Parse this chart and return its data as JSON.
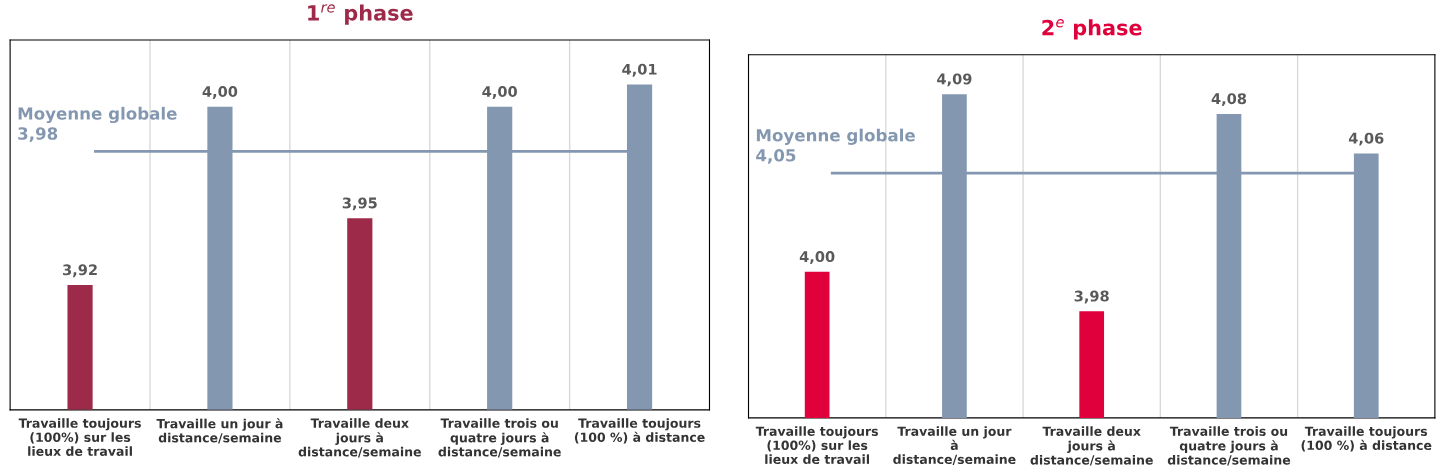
{
  "chart_data": [
    {
      "type": "bar",
      "title": "1$^{re}$ phase",
      "categories": [
        "Travaille toujours\n(100%) sur les\nlieux de travail",
        "Travaille un jour à\ndistance/semaine",
        "Travaille deux\njours à\ndistance/semaine",
        "Travaille trois ou\nquatre jours à\ndistance/semaine",
        "Travaille toujours\n(100 %) à distance"
      ],
      "values": [
        3.92,
        4.0,
        3.95,
        4.0,
        4.01
      ],
      "colors": [
        "#9e2a4a",
        "#8497b0",
        "#9e2a4a",
        "#8497b0",
        "#8497b0"
      ],
      "value_labels": [
        "3,92",
        "4,00",
        "3,95",
        "4,00",
        "4,01"
      ],
      "ylim": [
        3.864,
        4.03
      ],
      "tick_labels": "x",
      "grid": "x",
      "legend": false,
      "ref_lines": [
        {
          "axis": "y",
          "value": 3.98,
          "label": "Moyenne globale\n3,98",
          "color": "#8497b0"
        }
      ]
    },
    {
      "type": "bar",
      "title": "2$^{e}$ phase",
      "categories": [
        "Travaille toujours\n(100%) sur les\nlieux de travail",
        "Travaille un jour\nà\ndistance/semaine",
        "Travaille deux\njours à\ndistance/semaine",
        "Travaille trois ou\nquatre jours à\ndistance/semaine",
        "Travaille toujours\n(100 %) à distance"
      ],
      "values": [
        4.0,
        4.09,
        3.98,
        4.08,
        4.06
      ],
      "colors": [
        "#e0003c",
        "#8497b0",
        "#e0003c",
        "#8497b0",
        "#8497b0"
      ],
      "value_labels": [
        "4,00",
        "4,09",
        "3,98",
        "4,08",
        "4,06"
      ],
      "ylim": [
        3.926,
        4.11
      ],
      "tick_labels": "x",
      "grid": "x",
      "legend": false,
      "ref_lines": [
        {
          "axis": "y",
          "value": 4.05,
          "label": "Moyenne globale\n4,05",
          "color": "#8497b0"
        }
      ]
    }
  ]
}
